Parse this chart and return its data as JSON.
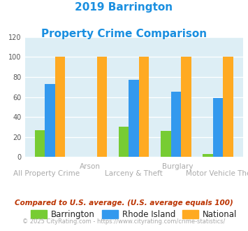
{
  "title_line1": "2019 Barrington",
  "title_line2": "Property Crime Comparison",
  "title_color": "#1a8fe0",
  "categories": [
    "All Property Crime",
    "Arson",
    "Larceny & Theft",
    "Burglary",
    "Motor Vehicle Theft"
  ],
  "top_labels": [
    "",
    "Arson",
    "",
    "Burglary",
    ""
  ],
  "bottom_labels": [
    "All Property Crime",
    "",
    "Larceny & Theft",
    "",
    "Motor Vehicle Theft"
  ],
  "barrington": [
    27,
    0,
    30,
    26,
    3
  ],
  "rhode_island": [
    73,
    0,
    77,
    65,
    59
  ],
  "national": [
    100,
    100,
    100,
    100,
    100
  ],
  "barrington_color": "#77cc33",
  "rhode_island_color": "#3399ee",
  "national_color": "#ffaa22",
  "ylim": [
    0,
    120
  ],
  "yticks": [
    0,
    20,
    40,
    60,
    80,
    100,
    120
  ],
  "background_color": "#ddeef5",
  "legend_labels": [
    "Barrington",
    "Rhode Island",
    "National"
  ],
  "footnote1": "Compared to U.S. average. (U.S. average equals 100)",
  "footnote2": "© 2025 CityRating.com - https://www.cityrating.com/crime-statistics/",
  "footnote1_color": "#bb3300",
  "footnote2_color": "#aaaaaa",
  "footnote2_link_color": "#3399ee",
  "xlabel_color": "#aaaaaa",
  "group_width": 0.72,
  "figsize": [
    3.55,
    3.3
  ],
  "dpi": 100
}
